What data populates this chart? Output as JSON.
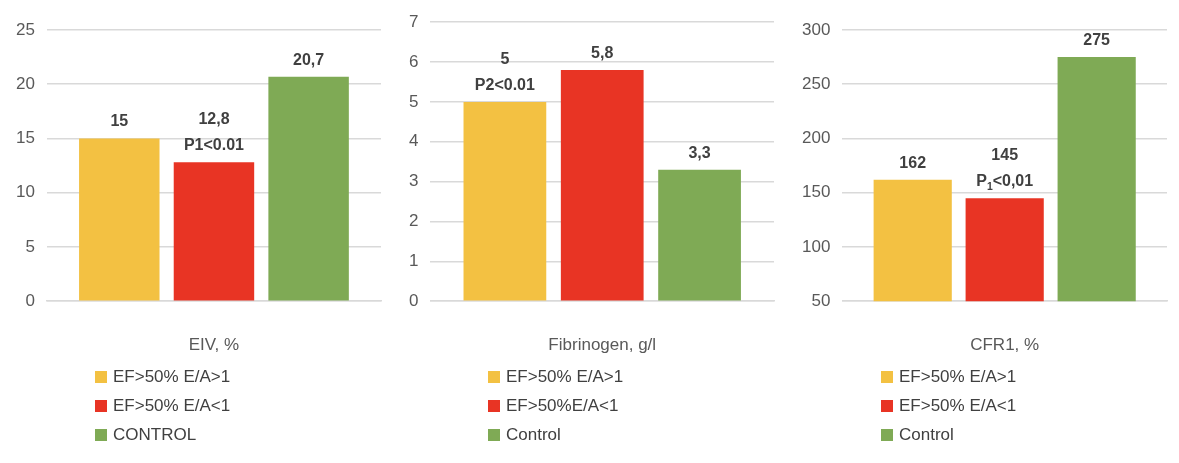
{
  "chart_data": [
    {
      "type": "bar",
      "xlabel": "EIV, %",
      "categories": [
        null
      ],
      "ylim": [
        0,
        25
      ],
      "yticks": [
        0,
        5,
        10,
        15,
        20,
        25
      ],
      "grid": "y",
      "legend": "bottom",
      "series": [
        {
          "name": "EF>50% E/A>1",
          "color": "#f3c142",
          "values": [
            15
          ],
          "value_labels": [
            "15"
          ]
        },
        {
          "name": "EF>50% E/A<1",
          "color": "#e83424",
          "values": [
            12.8
          ],
          "value_labels": [
            "12,8\nP1<0.01"
          ]
        },
        {
          "name": "CONTROL",
          "color": "#7faa55",
          "values": [
            20.7
          ],
          "value_labels": [
            "20,7"
          ]
        }
      ]
    },
    {
      "type": "bar",
      "xlabel": "Fibrinogen, g/l",
      "categories": [
        null
      ],
      "ylim": [
        0,
        7
      ],
      "yticks": [
        0,
        1,
        2,
        3,
        4,
        5,
        6,
        7
      ],
      "grid": "y",
      "legend": "bottom",
      "series": [
        {
          "name": "EF>50% E/A>1",
          "color": "#f3c142",
          "values": [
            5
          ],
          "value_labels": [
            "5\nP2<0.01"
          ]
        },
        {
          "name": "EF>50%E/A<1",
          "color": "#e83424",
          "values": [
            5.8
          ],
          "value_labels": [
            "5,8"
          ]
        },
        {
          "name": "Control",
          "color": "#7faa55",
          "values": [
            3.3
          ],
          "value_labels": [
            "3,3"
          ]
        }
      ]
    },
    {
      "type": "bar",
      "xlabel": "CFR1, %",
      "categories": [
        null
      ],
      "ylim": [
        50,
        300
      ],
      "yticks": [
        50,
        100,
        150,
        200,
        250,
        300
      ],
      "grid": "y",
      "legend": "bottom",
      "series": [
        {
          "name": "EF>50% E/A>1",
          "color": "#f3c142",
          "values": [
            162
          ],
          "value_labels": [
            "162"
          ]
        },
        {
          "name": "EF>50% E/A<1",
          "color": "#e83424",
          "values": [
            145
          ],
          "value_labels": [
            "145\nP$_{1}$<0,01"
          ]
        },
        {
          "name": "Control",
          "color": "#7faa55",
          "values": [
            275
          ],
          "value_labels": [
            "275"
          ]
        }
      ]
    }
  ]
}
